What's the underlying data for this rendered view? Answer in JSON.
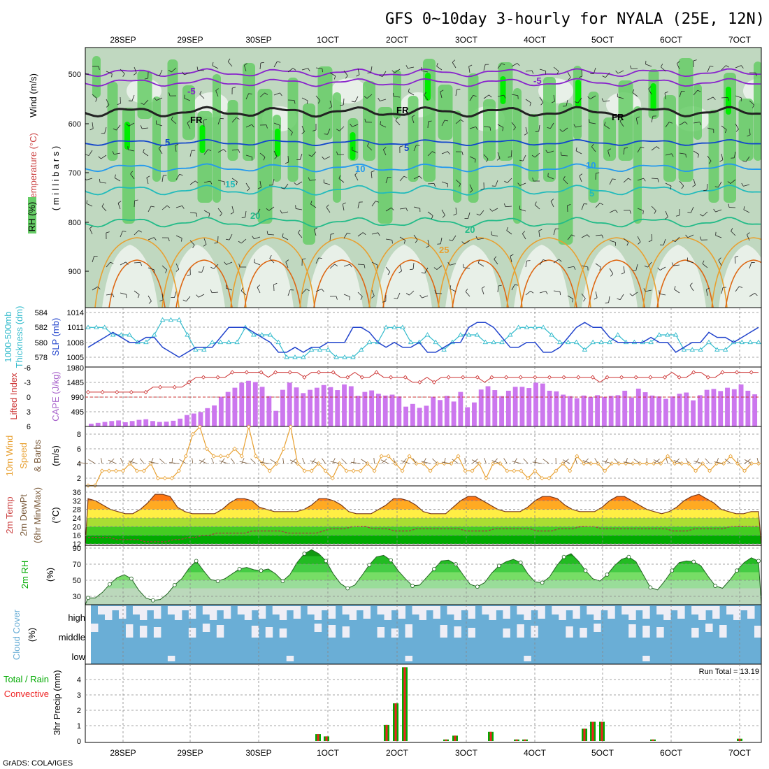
{
  "title": "GFS 0~10day 3-hourly for NYALA (25E, 12N)",
  "footer": "GrADS: COLA/IGES",
  "date_labels": [
    "28SEP",
    "29SEP",
    "30SEP",
    "1OCT",
    "2OCT",
    "3OCT",
    "4OCT",
    "5OCT",
    "6OCT",
    "7OCT"
  ],
  "colors": {
    "rh_dry": "#e8f0e8",
    "rh_mid": "#c0d8c0",
    "rh_wet": "#66cc66",
    "rh_sat": "#00ee00",
    "cape": "#cc77ee",
    "lifted": "#cc3333",
    "thickness": "#33bbcc",
    "slp": "#2244cc",
    "wind10": "#e8a030",
    "barb": "#7a5a3a",
    "temp_hot": "#dd3300",
    "temp_warm": "#ff9900",
    "rh2m": "#00cc00",
    "cloud": "#6aaed6",
    "cloud_bg": "#eeeef6",
    "precip_total": "#00aa00",
    "precip_conv": "#ee2222",
    "grid": "#888888"
  },
  "panels": {
    "upper": {
      "label_wind": "Wind (m/s)",
      "label_temp": "Temperature (°C)",
      "label_rh": "RH (%)",
      "label_mb": "( m i l l i b a r s )",
      "levels": [
        "500",
        "600",
        "700",
        "800",
        "900"
      ],
      "contour_labels": [
        "-5",
        "FR",
        "5",
        "10",
        "15",
        "20",
        "25",
        "-5",
        "FR",
        "5",
        "10",
        "5",
        "20",
        "FR"
      ]
    },
    "thickness": {
      "label_a": "1000-500mb",
      "label_b": "Thickness (dm)",
      "label_c": "SLP (mb)",
      "left_ticks": [
        "584",
        "582",
        "580",
        "578"
      ],
      "right_ticks": [
        "1014",
        "1011",
        "1008",
        "1005"
      ]
    },
    "cape": {
      "label_a": "Lifted Index",
      "label_b": "CAPE (J/kg)",
      "left_ticks": [
        "-6",
        "-3",
        "0",
        "3",
        "6"
      ],
      "right_ticks": [
        "1980",
        "1485",
        "990",
        "495"
      ]
    },
    "wind10": {
      "label_a": "10m Wind",
      "label_b": "Speed",
      "label_c": "& Barbs",
      "label_d": "(m/s)",
      "ticks": [
        "8",
        "6",
        "4",
        "2"
      ]
    },
    "temp2m": {
      "label_a": "2m Temp",
      "label_b": "2m DewPt",
      "label_c": "(6hr Min/Max)",
      "label_d": "(°C)",
      "ticks": [
        "36",
        "32",
        "28",
        "24",
        "20",
        "16",
        "12"
      ]
    },
    "rh2m": {
      "label_a": "2m RH",
      "label_b": "(%)",
      "ticks": [
        "90",
        "70",
        "50",
        "30"
      ]
    },
    "cloud": {
      "label_a": "Cloud Cover",
      "label_b": "(%)",
      "levels": [
        "high",
        "middle",
        "low"
      ]
    },
    "precip": {
      "label_a": "3hr Precip (mm)",
      "label_b": "Total / Rain",
      "label_c": "Convective",
      "ticks": [
        "4",
        "3",
        "2",
        "1",
        "0"
      ],
      "run_total": "Run Total = 13.19"
    }
  },
  "chart_data": [
    {
      "type": "line",
      "title": "1000-500mb Thickness (dm) / SLP (mb)",
      "series": [
        {
          "name": "Thickness",
          "values": [
            582,
            582,
            582,
            581,
            581,
            581,
            580,
            580,
            581,
            583,
            583,
            583,
            581,
            579,
            579,
            580,
            580,
            580,
            580,
            582,
            581,
            581,
            581,
            580,
            578,
            578,
            578,
            579,
            579,
            579,
            578,
            578,
            578,
            579,
            580,
            580,
            582,
            582,
            582,
            580,
            580,
            581,
            580,
            579,
            580,
            581,
            581,
            581,
            580,
            580,
            580,
            581,
            582,
            582,
            582,
            582,
            581,
            580,
            580,
            580,
            579,
            580,
            580,
            580,
            581,
            580,
            580,
            580,
            580,
            581,
            581,
            581,
            579,
            579,
            579,
            580,
            579,
            579,
            580,
            580,
            580,
            580
          ]
        },
        {
          "name": "SLP",
          "values": [
            1007,
            1008,
            1009,
            1010,
            1009,
            1008,
            1008,
            1009,
            1009,
            1007,
            1006,
            1005,
            1006,
            1007,
            1007,
            1007,
            1009,
            1011,
            1011,
            1011,
            1010,
            1009,
            1008,
            1006,
            1006,
            1007,
            1006,
            1007,
            1007,
            1008,
            1008,
            1008,
            1011,
            1011,
            1010,
            1008,
            1007,
            1008,
            1007,
            1007,
            1008,
            1006,
            1006,
            1007,
            1008,
            1008,
            1011,
            1012,
            1012,
            1011,
            1009,
            1007,
            1007,
            1008,
            1008,
            1006,
            1006,
            1007,
            1009,
            1011,
            1012,
            1011,
            1011,
            1009,
            1008,
            1008,
            1008,
            1008,
            1009,
            1008,
            1008,
            1006,
            1007,
            1008,
            1008,
            1010,
            1009,
            1009,
            1008,
            1009,
            1010,
            1011
          ]
        }
      ]
    },
    {
      "type": "bar",
      "title": "CAPE (J/kg) / Lifted Index",
      "series": [
        {
          "name": "CAPE",
          "values": [
            90,
            120,
            150,
            180,
            200,
            140,
            180,
            220,
            240,
            180,
            150,
            160,
            190,
            260,
            380,
            430,
            480,
            610,
            700,
            990,
            1150,
            1290,
            1460,
            1520,
            1480,
            1320,
            1010,
            520,
            1220,
            1460,
            1300,
            1110,
            1220,
            1290,
            1380,
            1310,
            1210,
            1400,
            1340,
            1020,
            1150,
            1200,
            1090,
            1030,
            1060,
            1000,
            660,
            750,
            620,
            690,
            990,
            880,
            1020,
            830,
            1150,
            640,
            800,
            1230,
            1340,
            1210,
            1010,
            1190,
            1320,
            1320,
            1280,
            1460,
            1430,
            1190,
            1170,
            1060,
            1010,
            940,
            1030,
            980,
            1040,
            980,
            1020,
            1040,
            1190,
            960,
            1260,
            1140,
            1030,
            1000,
            920,
            1000,
            1090,
            1130,
            870,
            1040,
            1220,
            1250,
            1180,
            1290,
            1240,
            1400,
            1190,
            1070
          ]
        },
        {
          "name": "Lifted Index",
          "values": [
            -1,
            -1,
            -1,
            -1,
            -1,
            -1,
            -1,
            -1,
            -1,
            -2,
            -2,
            -2,
            -2,
            -2,
            -3,
            -4,
            -4,
            -4,
            -4,
            -4,
            -5,
            -5,
            -5,
            -5,
            -5,
            -4,
            -5,
            -5,
            -5,
            -5,
            -4,
            -5,
            -5,
            -5,
            -5,
            -4,
            -4,
            -5,
            -4,
            -4,
            -5,
            -4,
            -4,
            -4,
            -4,
            -3,
            -3,
            -4,
            -3,
            -4,
            -4,
            -4,
            -4,
            -4,
            -4,
            -3,
            -4,
            -4,
            -4,
            -4,
            -4,
            -4,
            -4,
            -4,
            -4,
            -4,
            -4,
            -4,
            -4,
            -4,
            -4,
            -3,
            -4,
            -4,
            -4,
            -4,
            -4,
            -4,
            -4,
            -4,
            -4,
            -5,
            -4,
            -4,
            -5,
            -5,
            -4,
            -4,
            -5,
            -5,
            -5,
            -5,
            -5,
            -5
          ]
        }
      ]
    },
    {
      "type": "line",
      "title": "10m Wind Speed (m/s)",
      "series": [
        {
          "name": "Speed",
          "values": [
            1,
            1,
            3,
            3,
            3,
            3,
            4,
            3,
            3,
            4,
            2,
            2,
            2,
            3,
            5,
            8,
            9,
            6,
            5,
            5,
            5,
            6,
            5,
            9,
            5,
            4,
            3,
            4,
            6,
            9,
            4,
            3,
            3,
            4,
            3,
            2,
            4,
            3,
            3,
            3,
            4,
            3,
            5,
            5,
            4,
            3,
            5,
            4,
            4,
            3,
            4,
            4,
            4,
            5,
            3,
            3,
            4,
            2,
            4,
            4,
            3,
            3,
            3,
            2,
            3,
            2,
            2,
            3,
            4,
            3,
            5,
            4,
            4,
            4,
            3,
            4,
            4,
            4,
            4,
            4,
            4,
            4,
            4,
            5,
            4,
            4,
            4,
            3,
            4,
            3,
            4,
            4,
            5,
            4,
            3,
            4,
            4
          ]
        }
      ]
    },
    {
      "type": "area",
      "title": "2m Temp / 2m DewPt (°C)",
      "series": [
        {
          "name": "2m Temp",
          "values": [
            33,
            32,
            30,
            28,
            27,
            26,
            26,
            28,
            31,
            35,
            35,
            34,
            29,
            27,
            26,
            26,
            26,
            26,
            28,
            31,
            33,
            33,
            32,
            29,
            28,
            27,
            27,
            27,
            27,
            28,
            30,
            33,
            33,
            32,
            30,
            27,
            26,
            26,
            26,
            28,
            30,
            33,
            33,
            32,
            30,
            27,
            26,
            26,
            26,
            29,
            32,
            34,
            34,
            32,
            30,
            28,
            27,
            27,
            27,
            29,
            32,
            34,
            34,
            33,
            30,
            28,
            27,
            27,
            27,
            29,
            32,
            34,
            34,
            32,
            30,
            28,
            27,
            26,
            27,
            29,
            32,
            34,
            35,
            33,
            31,
            28,
            27,
            26,
            26,
            27,
            27
          ]
        },
        {
          "name": "2m DewPt",
          "values": [
            15,
            15,
            15,
            15,
            14,
            14,
            14,
            14,
            13,
            13,
            13,
            13,
            14,
            14,
            15,
            15,
            16,
            16,
            17,
            17,
            17,
            17,
            17,
            18,
            18,
            18,
            18,
            18,
            17,
            17,
            17,
            17,
            17,
            18,
            19,
            19,
            19,
            20,
            20,
            20,
            19,
            19,
            19,
            18,
            18,
            18,
            19,
            19,
            19,
            19,
            19,
            19,
            19,
            18,
            18,
            18,
            18,
            19,
            19,
            19,
            19,
            19,
            19,
            18,
            18,
            18,
            19,
            19,
            19,
            20,
            20,
            20,
            19,
            19,
            19,
            19,
            19,
            19,
            19,
            19,
            19,
            19,
            18,
            18,
            18,
            19,
            19,
            19,
            19,
            19,
            20,
            20,
            20,
            20,
            20
          ]
        }
      ]
    },
    {
      "type": "area",
      "title": "2m RH (%)",
      "series": [
        {
          "name": "2m RH",
          "values": [
            28,
            28,
            35,
            45,
            53,
            57,
            52,
            38,
            28,
            25,
            26,
            33,
            44,
            52,
            65,
            74,
            62,
            51,
            49,
            52,
            58,
            64,
            66,
            63,
            62,
            64,
            58,
            49,
            57,
            72,
            83,
            88,
            83,
            74,
            58,
            46,
            40,
            44,
            56,
            69,
            79,
            81,
            75,
            62,
            52,
            43,
            44,
            54,
            64,
            74,
            75,
            70,
            57,
            45,
            42,
            47,
            59,
            68,
            73,
            76,
            72,
            58,
            48,
            47,
            54,
            68,
            79,
            83,
            74,
            62,
            52,
            49,
            57,
            68,
            76,
            79,
            73,
            57,
            41,
            38,
            49,
            62,
            72,
            74,
            73,
            68,
            55,
            43,
            40,
            50,
            62,
            72,
            78,
            74
          ]
        }
      ]
    },
    {
      "type": "table",
      "title": "Cloud Cover (%)",
      "levels": [
        "high",
        "middle",
        "low"
      ]
    },
    {
      "type": "bar",
      "title": "3hr Precip (mm)",
      "series": [
        {
          "name": "Total",
          "x": [
            "1OCT 00Z",
            "1OCT 03Z",
            "2OCT 00Z",
            "2OCT 03Z",
            "2OCT 06Z",
            "2OCT 09Z",
            "3OCT 00Z",
            "3OCT 03Z",
            "3OCT 06Z",
            "4OCT 00Z",
            "4OCT 03Z",
            "4OCT 06Z",
            "5OCT 00Z",
            "5OCT 03Z",
            "5OCT 06Z",
            "5OCT 09Z",
            "5OCT 12Z",
            "6OCT 00Z",
            "7OCT 03Z"
          ],
          "values": [
            0.45,
            0.3,
            1.05,
            2.45,
            4.8,
            0.0,
            0.1,
            0.35,
            0.6,
            0.1,
            0.1,
            0.0,
            0.8,
            1.25,
            1.25,
            0.0,
            0.0,
            0.1,
            0.15
          ]
        }
      ]
    }
  ]
}
